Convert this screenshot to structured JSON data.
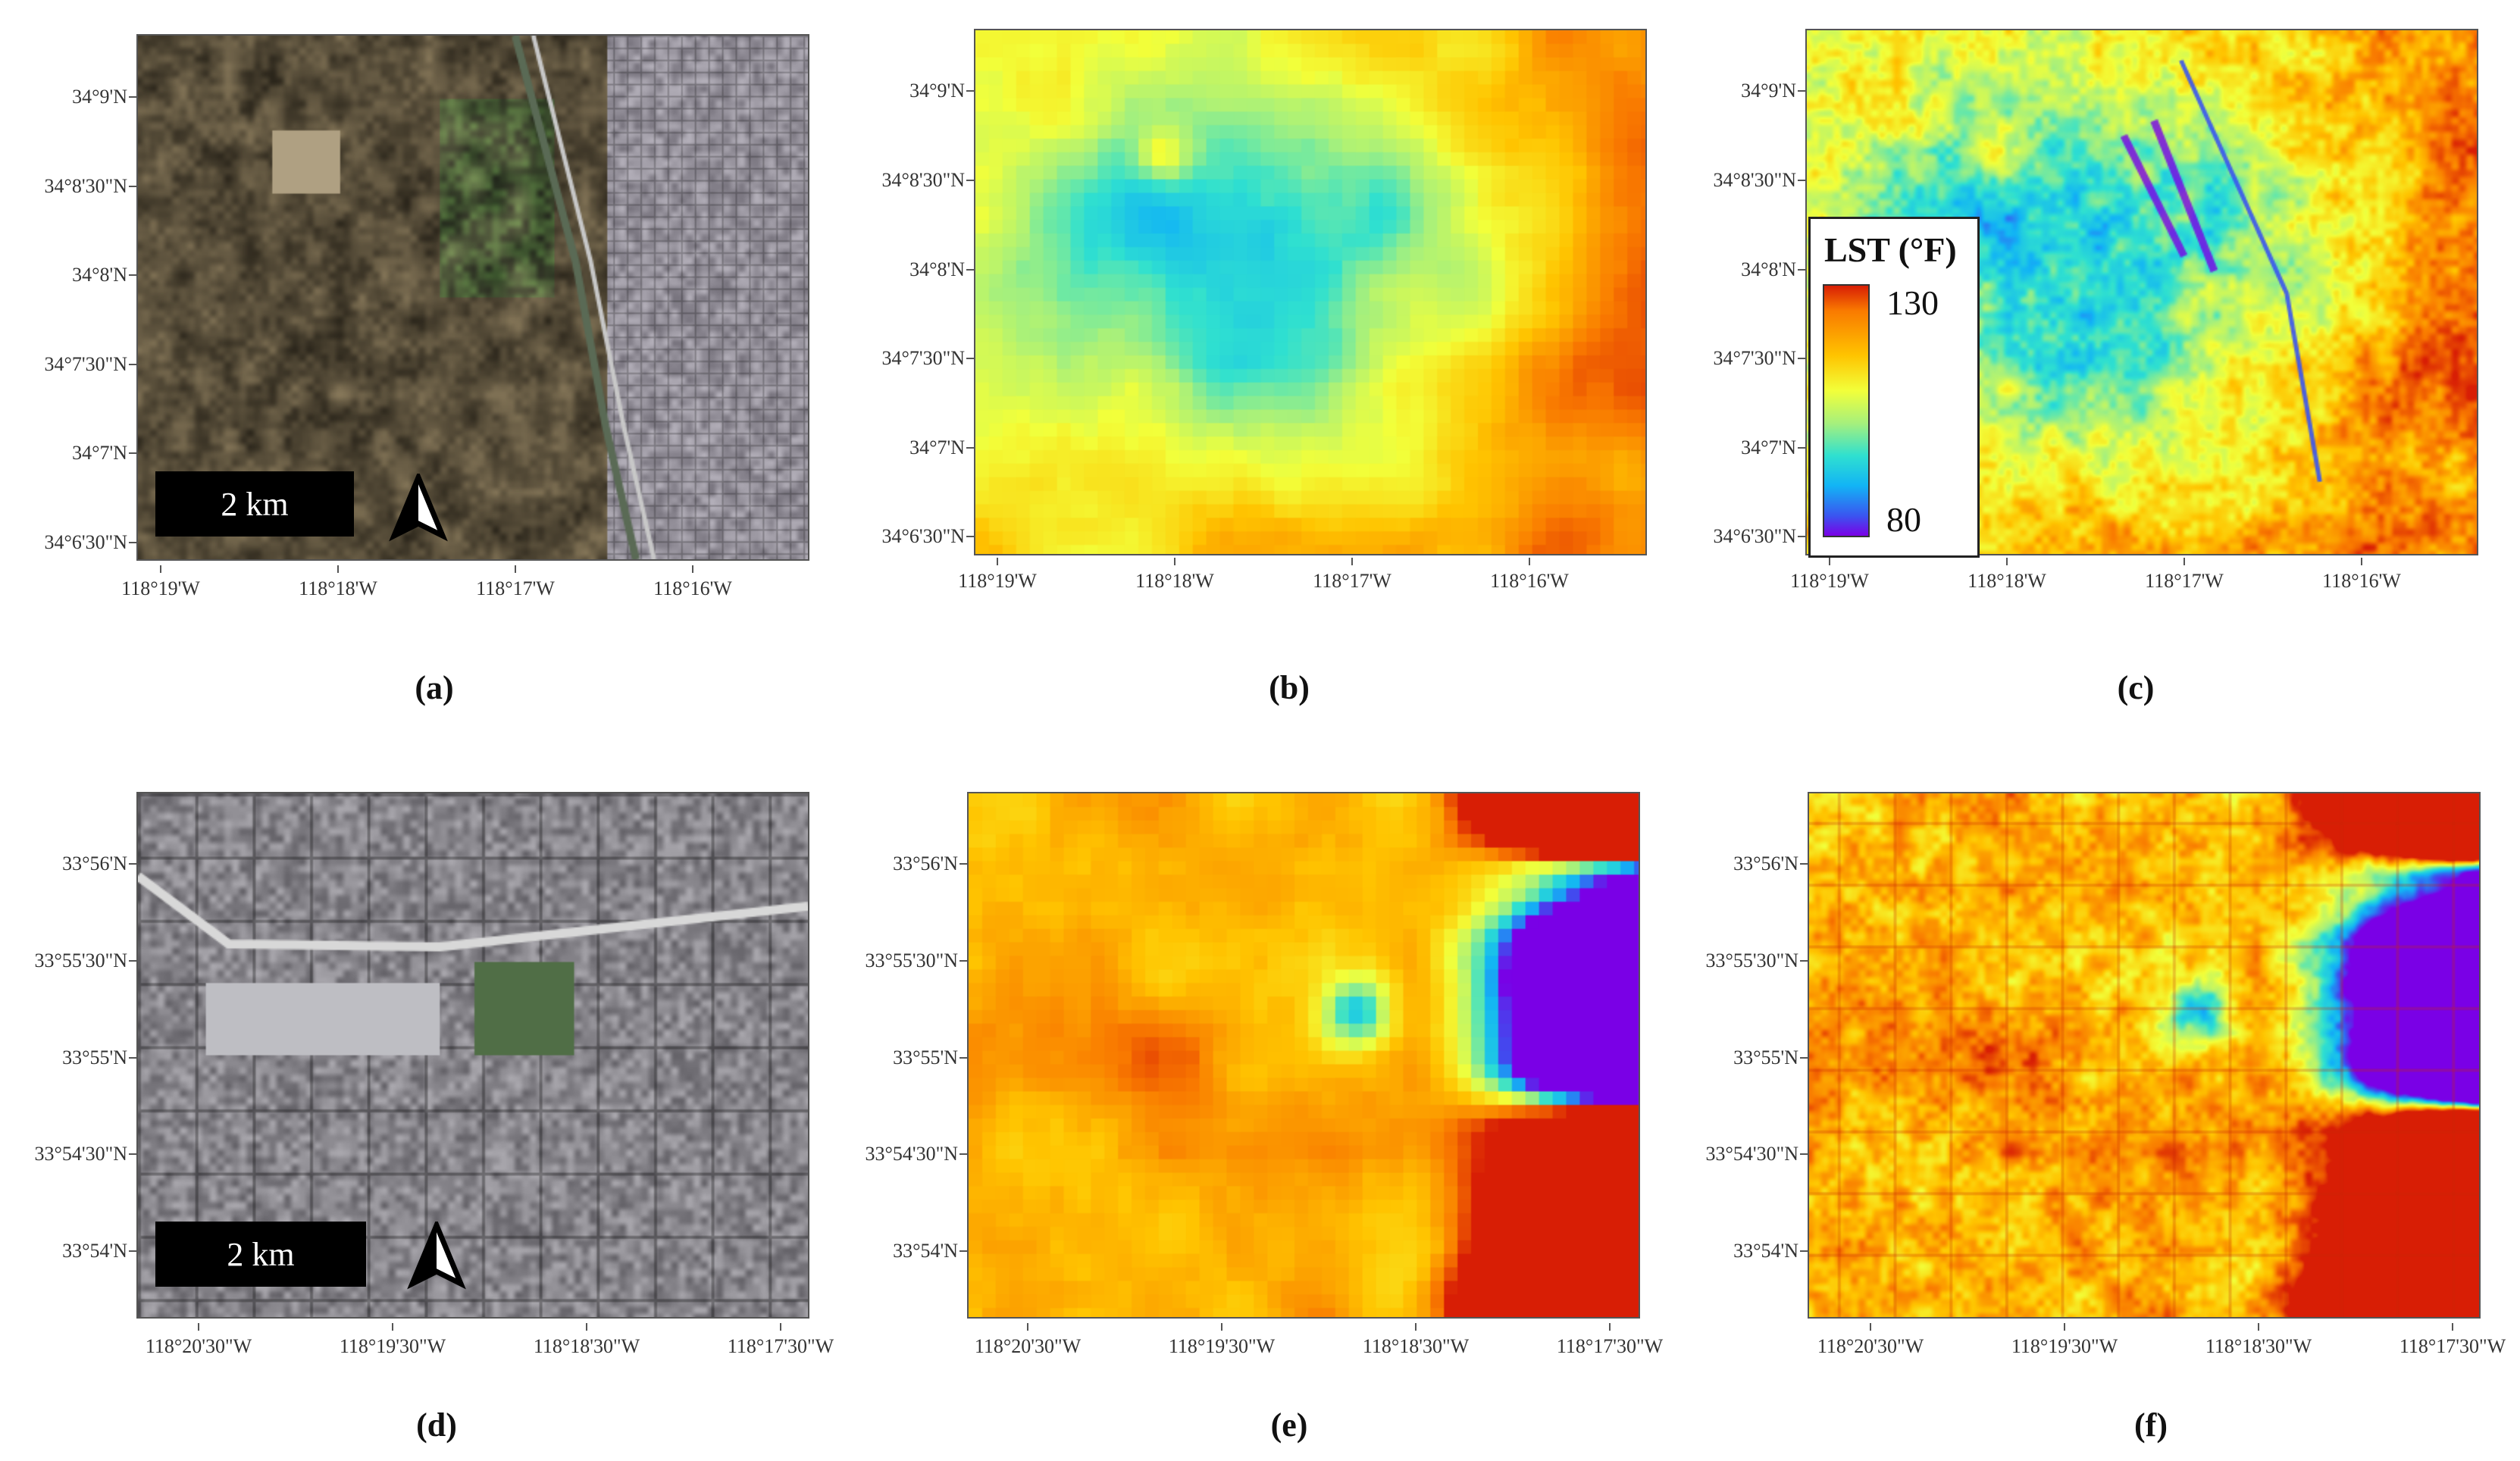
{
  "row1": {
    "lat_ticks": [
      "34°9'N",
      "34°8'30\"N",
      "34°8'N",
      "34°7'30\"N",
      "34°7'N",
      "34°6'30\"N"
    ],
    "lon_ticks": [
      "118°19'W",
      "118°18'W",
      "118°17'W",
      "118°16'W"
    ],
    "scalebar": "2 km",
    "labels": [
      "(a)",
      "(b)",
      "(c)"
    ]
  },
  "row2": {
    "lat_ticks": [
      "33°56'N",
      "33°55'30\"N",
      "33°55'N",
      "33°54'30\"N",
      "33°54'N"
    ],
    "lon_ticks": [
      "118°20'30\"W",
      "118°19'30\"W",
      "118°18'30\"W",
      "118°17'30\"W"
    ],
    "scalebar": "2 km",
    "labels": [
      "(d)",
      "(e)",
      "(f)"
    ]
  },
  "legend": {
    "title": "LST (°F)",
    "max": "130",
    "min": "80"
  },
  "colors": {
    "colormap": [
      "#7a00e6",
      "#3a55f0",
      "#12b4f5",
      "#2fe0d0",
      "#a6f07c",
      "#f2ff3a",
      "#ffc400",
      "#f97a00",
      "#d81e05"
    ]
  }
}
